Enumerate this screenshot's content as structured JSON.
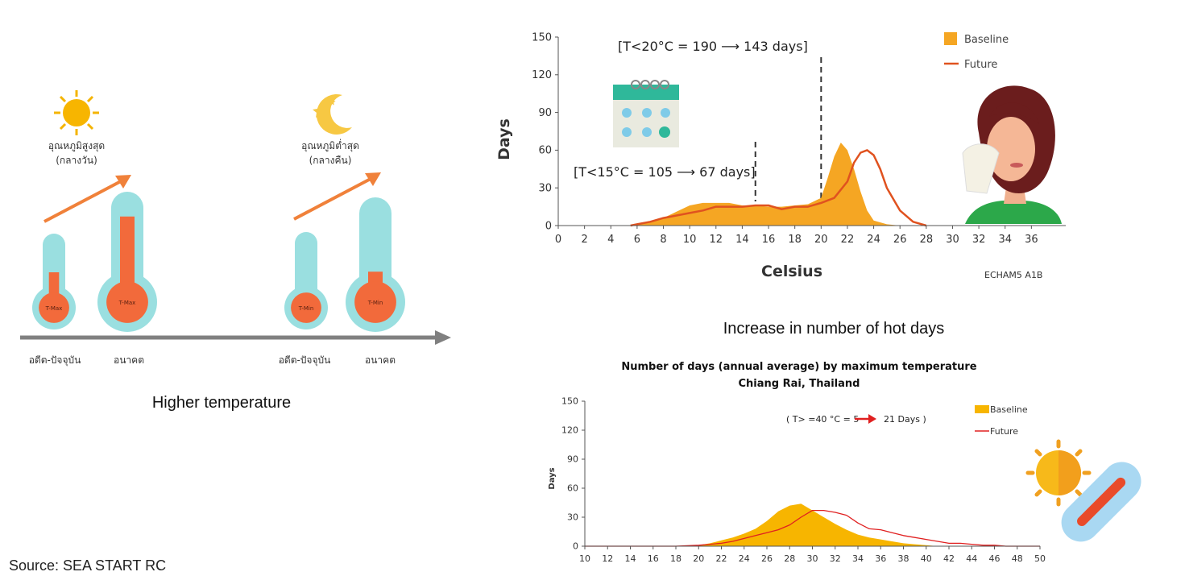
{
  "left_panel": {
    "day_label": [
      "อุณหภูมิสูงสุด",
      "(กลางวัน)"
    ],
    "night_label": [
      "อุณหภูมิต่ำสุด",
      "(กลางคืน)"
    ],
    "thermometers": [
      {
        "label": "T-Max",
        "level": 0.55
      },
      {
        "label": "T-Max",
        "level": 0.85
      },
      {
        "label": "T-Min",
        "level": 0.18
      },
      {
        "label": "T-Min",
        "level": 0.32
      }
    ],
    "period_labels": [
      "อดีต-ปัจจุบัน",
      "อนาคต",
      "อดีต-ปัจจุบัน",
      "อนาคต"
    ],
    "caption": "Higher temperature",
    "source": "Source: SEA START RC"
  },
  "hot_days_caption": "Increase in number of hot days",
  "colors": {
    "baseline": "#f5a623",
    "future": "#e0521f",
    "future2": "#e02020",
    "baseline2": "#f7b500",
    "thermo_glass": "#9adfe0",
    "thermo_fill": "#f26a3b"
  },
  "chart_data": [
    {
      "type": "area",
      "title": "",
      "xlabel": "Celsius",
      "ylabel": "Days",
      "xlim": [
        0,
        38
      ],
      "ylim": [
        0,
        150
      ],
      "x_ticks": [
        0,
        2,
        4,
        6,
        8,
        10,
        12,
        14,
        16,
        18,
        20,
        22,
        24,
        26,
        28,
        30,
        32,
        34,
        36
      ],
      "y_ticks": [
        0,
        30,
        60,
        90,
        120,
        150
      ],
      "legend_position": "top-right",
      "annotations": [
        "[T<20°C = 190 ⟶ 143 days]",
        "[T<15°C = 105 ⟶ 67 days]"
      ],
      "vlines": [
        15,
        20
      ],
      "credit": "ECHAM5 A1B",
      "series": [
        {
          "name": "Baseline",
          "kind": "area",
          "x": [
            5.5,
            6,
            7,
            8,
            9,
            10,
            11,
            12,
            13,
            14,
            15,
            16,
            17,
            18,
            19,
            20,
            20.5,
            21,
            21.5,
            22,
            22.5,
            23,
            23.5,
            24,
            25,
            26
          ],
          "values": [
            0,
            1,
            3,
            6,
            11,
            16,
            18,
            18,
            18,
            16,
            16,
            15,
            15,
            16,
            17,
            22,
            38,
            55,
            66,
            60,
            45,
            27,
            12,
            4,
            1,
            0
          ]
        },
        {
          "name": "Future",
          "kind": "line",
          "x": [
            5.5,
            6,
            7,
            8,
            9,
            10,
            11,
            12,
            13,
            14,
            15,
            16,
            17,
            18,
            19,
            20,
            21,
            22,
            22.5,
            23,
            23.5,
            24,
            24.5,
            25,
            26,
            27,
            28
          ],
          "values": [
            0,
            1,
            3,
            6,
            8,
            10,
            12,
            15,
            15,
            15,
            16,
            16,
            13,
            15,
            15,
            18,
            22,
            35,
            50,
            58,
            60,
            56,
            45,
            30,
            12,
            3,
            0
          ]
        }
      ]
    },
    {
      "type": "area",
      "title": "Number of days (annual average) by maximum temperature",
      "subtitle": "Chiang Rai, Thailand",
      "xlabel": "",
      "ylabel": "Days",
      "xlim": [
        10,
        50
      ],
      "ylim": [
        0,
        150
      ],
      "x_ticks": [
        10,
        12,
        14,
        16,
        18,
        20,
        22,
        24,
        26,
        28,
        30,
        32,
        34,
        36,
        38,
        40,
        42,
        44,
        46,
        48,
        50
      ],
      "y_ticks": [
        0,
        30,
        60,
        90,
        120,
        150
      ],
      "legend_position": "top-right",
      "annotation_text": "( T> =40 °C  = 5",
      "annotation_value": "21  Days )",
      "series": [
        {
          "name": "Baseline",
          "kind": "area",
          "x": [
            19,
            20,
            21,
            22,
            23,
            24,
            25,
            26,
            27,
            28,
            29,
            30,
            31,
            32,
            33,
            34,
            35,
            36,
            37,
            38,
            39,
            40,
            41
          ],
          "values": [
            0,
            1,
            3,
            6,
            9,
            13,
            18,
            26,
            36,
            42,
            44,
            37,
            30,
            23,
            17,
            12,
            9,
            7,
            5,
            3,
            2,
            1,
            0
          ]
        },
        {
          "name": "Future",
          "kind": "line",
          "x": [
            10,
            18,
            20,
            21,
            22,
            23,
            24,
            25,
            26,
            27,
            28,
            29,
            30,
            31,
            32,
            33,
            34,
            35,
            36,
            37,
            38,
            39,
            40,
            41,
            42,
            43,
            44,
            45,
            46,
            47,
            48,
            49,
            50
          ],
          "values": [
            0,
            0,
            1,
            2,
            3,
            5,
            8,
            11,
            14,
            17,
            22,
            30,
            37,
            37,
            35,
            32,
            24,
            18,
            17,
            14,
            11,
            9,
            7,
            5,
            3,
            3,
            2,
            1,
            1,
            0,
            0,
            0,
            0
          ]
        }
      ]
    }
  ]
}
